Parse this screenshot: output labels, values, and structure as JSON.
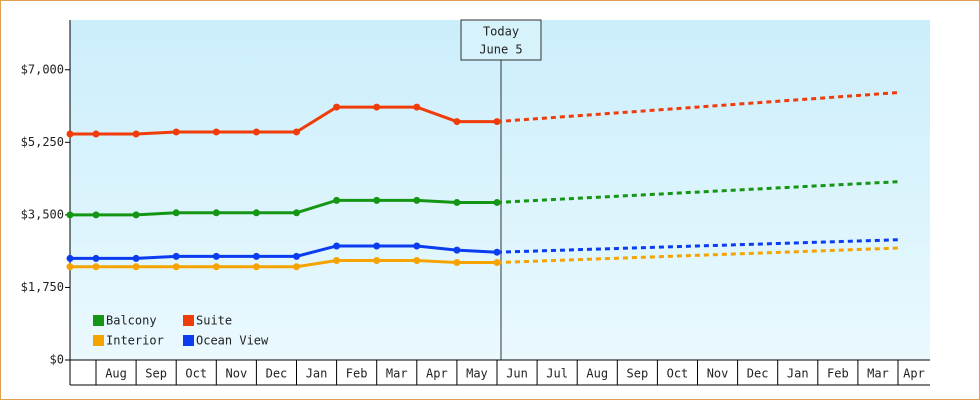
{
  "chart_data": {
    "type": "line",
    "annotation": [
      "Today",
      "June 5"
    ],
    "categories": [
      null,
      "Aug",
      "Sep",
      "Oct",
      "Nov",
      "Dec",
      "Jan",
      "Feb",
      "Mar",
      "Apr",
      "May",
      "Jun",
      "Jul",
      "Aug",
      "Sep",
      "Oct",
      "Nov",
      "Dec",
      "Jan",
      "Feb",
      "Mar",
      "Apr"
    ],
    "series": [
      {
        "name": "Balcony",
        "color": "#149614",
        "values": [
          3500,
          3500,
          3500,
          3550,
          3550,
          3550,
          3550,
          3850,
          3850,
          3850,
          3800,
          3800,
          3850,
          3900,
          3950,
          4000,
          4050,
          4100,
          4150,
          4200,
          4250,
          4300
        ]
      },
      {
        "name": "Suite",
        "color": "#f03c0a",
        "values": [
          5450,
          5450,
          5450,
          5500,
          5500,
          5500,
          5500,
          6100,
          6100,
          6100,
          5750,
          5750,
          5820,
          5890,
          5960,
          6030,
          6100,
          6170,
          6240,
          6310,
          6380,
          6450
        ]
      },
      {
        "name": "Interior",
        "color": "#f5a300",
        "values": [
          2250,
          2250,
          2250,
          2250,
          2250,
          2250,
          2250,
          2400,
          2400,
          2400,
          2350,
          2350,
          2385,
          2420,
          2455,
          2490,
          2525,
          2560,
          2595,
          2630,
          2665,
          2700
        ]
      },
      {
        "name": "Ocean View",
        "color": "#0a3cf0",
        "values": [
          2450,
          2450,
          2450,
          2500,
          2500,
          2500,
          2500,
          2750,
          2750,
          2750,
          2650,
          2600,
          2630,
          2660,
          2690,
          2720,
          2750,
          2780,
          2810,
          2840,
          2870,
          2900
        ]
      }
    ],
    "ylim": [
      0,
      8200
    ],
    "yticks": [
      {
        "value": 0,
        "label": "$0"
      },
      {
        "value": 1750,
        "label": "$1,750"
      },
      {
        "value": 3500,
        "label": "$3,500"
      },
      {
        "value": 5250,
        "label": "$5,250"
      },
      {
        "value": 7000,
        "label": "$7,000"
      }
    ],
    "legend": "lower left",
    "grid": false
  }
}
